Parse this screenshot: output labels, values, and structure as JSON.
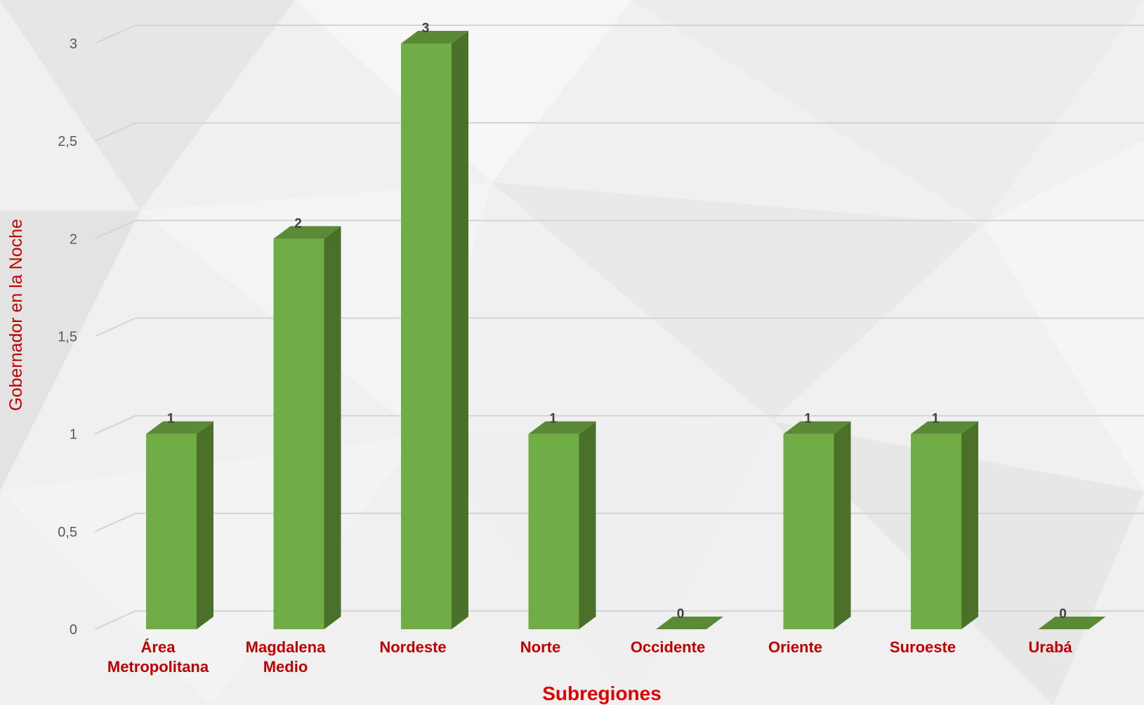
{
  "chart_data": {
    "type": "bar",
    "style": "3d-column",
    "categories": [
      "Área Metropolitana",
      "Magdalena Medio",
      "Nordeste",
      "Norte",
      "Occidente",
      "Oriente",
      "Suroeste",
      "Urabá"
    ],
    "values": [
      1,
      2,
      3,
      1,
      0,
      1,
      1,
      0
    ],
    "data_labels": [
      "1",
      "2",
      "3",
      "1",
      "0",
      "1",
      "1",
      "0"
    ],
    "title": "",
    "xlabel": "Subregiones",
    "ylabel": "Gobernador en la Noche",
    "ylim": [
      0,
      3
    ],
    "yticks": [
      "0",
      "0,5",
      "1",
      "1,5",
      "2",
      "2,5",
      "3"
    ],
    "grid": true,
    "legend": "none",
    "colors": {
      "bar_front": "#70ad47",
      "bar_side": "#4a7029",
      "bar_top": "#5a8a35",
      "category_label": "#c00000",
      "axis_title_x": "#e00000",
      "axis_title_y": "#c00000",
      "tick_label": "#595959",
      "gridline": "#d4d4d4"
    }
  }
}
